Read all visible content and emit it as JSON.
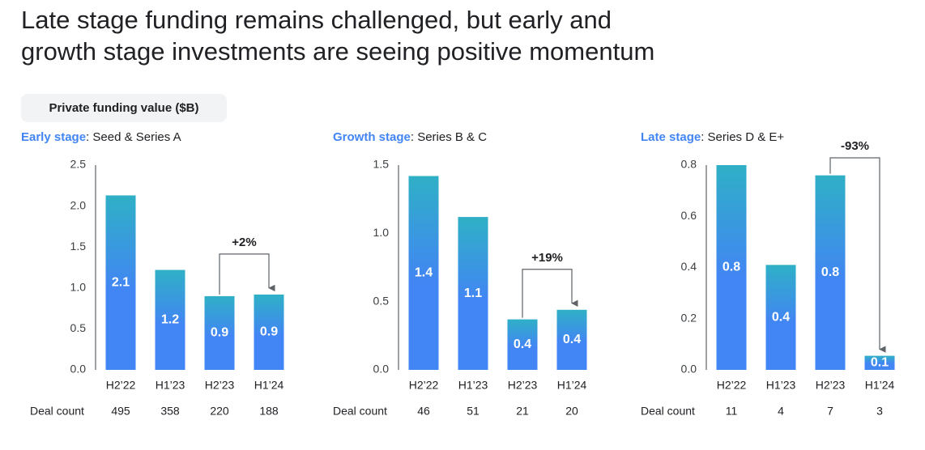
{
  "title_lines": [
    "Late stage funding remains challenged, but early and",
    "growth stage investments are seeing positive momentum"
  ],
  "badge": "Private funding value ($B)",
  "chart_data": [
    {
      "type": "bar",
      "subtitle_highlight": "Early stage",
      "subtitle": ": Seed & Series A",
      "categories": [
        "H2’22",
        "H1’23",
        "H2’23",
        "H1’24"
      ],
      "values": [
        2.13,
        1.22,
        0.9,
        0.92
      ],
      "value_labels": [
        "2.1",
        "1.2",
        "0.9",
        "0.9"
      ],
      "color": "#4285f4",
      "ylim": [
        0,
        2.5
      ],
      "yticks": [
        {
          "value": 0,
          "label": "0.0"
        },
        0.5,
        {
          "value": 1,
          "label": "1.0"
        },
        1.5,
        {
          "value": 2,
          "label": "2.0"
        },
        2.5
      ],
      "deal_count_label": "Deal count",
      "deal_counts": [
        495,
        358,
        220,
        188
      ],
      "annotation": "+2%"
    },
    {
      "type": "bar",
      "subtitle_highlight": "Growth stage",
      "subtitle": ": Series B & C",
      "categories": [
        "H2’22",
        "H1’23",
        "H2’23",
        "H1’24"
      ],
      "values": [
        1.42,
        1.12,
        0.37,
        0.44
      ],
      "value_labels": [
        "1.4",
        "1.1",
        "0.4",
        "0.4"
      ],
      "color": "#4285f4",
      "ylim": [
        0,
        1.5
      ],
      "yticks": [
        {
          "value": 0,
          "label": "0.0"
        },
        0.5,
        {
          "value": 1,
          "label": "1.0"
        },
        1.5
      ],
      "deal_count_label": "Deal count",
      "deal_counts": [
        46,
        51,
        21,
        20
      ],
      "annotation": "+19%"
    },
    {
      "type": "bar",
      "subtitle_highlight": "Late stage",
      "subtitle": ": Series D & E+",
      "categories": [
        "H2’22",
        "H1’23",
        "H2’23",
        "H1’24"
      ],
      "values": [
        0.8,
        0.41,
        0.76,
        0.055
      ],
      "value_labels": [
        "0.8",
        "0.4",
        "0.8",
        "0.1"
      ],
      "color": "#4285f4",
      "ylim": [
        0,
        0.8
      ],
      "yticks": [
        {
          "value": 0,
          "label": "0.0"
        },
        0.2,
        0.4,
        0.6,
        0.8
      ],
      "deal_count_label": "Deal count",
      "deal_counts": [
        11,
        4,
        7,
        3
      ],
      "annotation": "-93%"
    }
  ]
}
